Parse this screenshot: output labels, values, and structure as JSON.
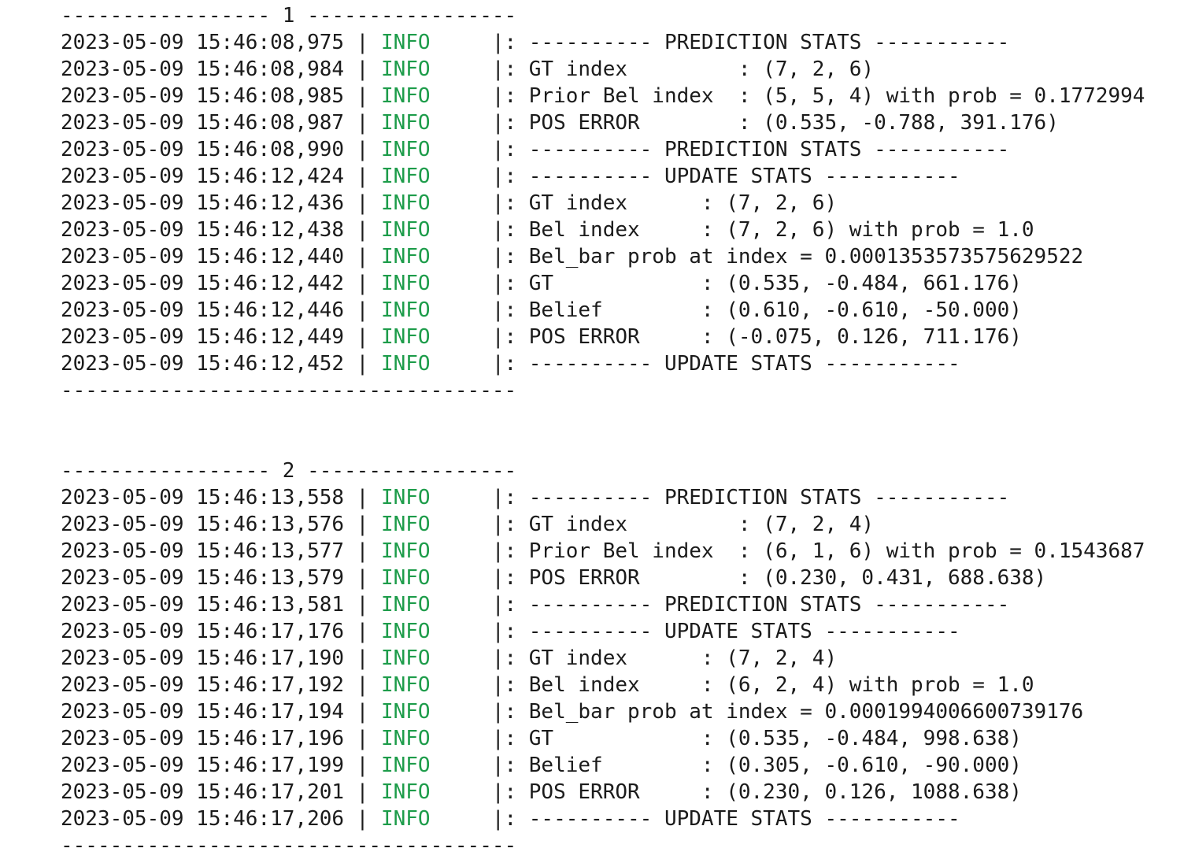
{
  "blocks": [
    {
      "header": "----------------- 1 -----------------",
      "lines": [
        {
          "timestamp": "2023-05-09 15:46:08,975 |",
          "level": "INFO",
          "message": "|: ---------- PREDICTION STATS -----------"
        },
        {
          "timestamp": "2023-05-09 15:46:08,984 |",
          "level": "INFO",
          "message": "|: GT index         : (7, 2, 6)"
        },
        {
          "timestamp": "2023-05-09 15:46:08,985 |",
          "level": "INFO",
          "message": "|: Prior Bel index  : (5, 5, 4) with prob = 0.1772994"
        },
        {
          "timestamp": "2023-05-09 15:46:08,987 |",
          "level": "INFO",
          "message": "|: POS ERROR        : (0.535, -0.788, 391.176)"
        },
        {
          "timestamp": "2023-05-09 15:46:08,990 |",
          "level": "INFO",
          "message": "|: ---------- PREDICTION STATS -----------"
        },
        {
          "timestamp": "2023-05-09 15:46:12,424 |",
          "level": "INFO",
          "message": "|: ---------- UPDATE STATS -----------"
        },
        {
          "timestamp": "2023-05-09 15:46:12,436 |",
          "level": "INFO",
          "message": "|: GT index      : (7, 2, 6)"
        },
        {
          "timestamp": "2023-05-09 15:46:12,438 |",
          "level": "INFO",
          "message": "|: Bel index     : (7, 2, 6) with prob = 1.0"
        },
        {
          "timestamp": "2023-05-09 15:46:12,440 |",
          "level": "INFO",
          "message": "|: Bel_bar prob at index = 0.0001353573575629522"
        },
        {
          "timestamp": "2023-05-09 15:46:12,442 |",
          "level": "INFO",
          "message": "|: GT            : (0.535, -0.484, 661.176)"
        },
        {
          "timestamp": "2023-05-09 15:46:12,446 |",
          "level": "INFO",
          "message": "|: Belief        : (0.610, -0.610, -50.000)"
        },
        {
          "timestamp": "2023-05-09 15:46:12,449 |",
          "level": "INFO",
          "message": "|: POS ERROR     : (-0.075, 0.126, 711.176)"
        },
        {
          "timestamp": "2023-05-09 15:46:12,452 |",
          "level": "INFO",
          "message": "|: ---------- UPDATE STATS -----------"
        }
      ],
      "footer": "-------------------------------------"
    },
    {
      "header": "----------------- 2 -----------------",
      "lines": [
        {
          "timestamp": "2023-05-09 15:46:13,558 |",
          "level": "INFO",
          "message": "|: ---------- PREDICTION STATS -----------"
        },
        {
          "timestamp": "2023-05-09 15:46:13,576 |",
          "level": "INFO",
          "message": "|: GT index         : (7, 2, 4)"
        },
        {
          "timestamp": "2023-05-09 15:46:13,577 |",
          "level": "INFO",
          "message": "|: Prior Bel index  : (6, 1, 6) with prob = 0.1543687"
        },
        {
          "timestamp": "2023-05-09 15:46:13,579 |",
          "level": "INFO",
          "message": "|: POS ERROR        : (0.230, 0.431, 688.638)"
        },
        {
          "timestamp": "2023-05-09 15:46:13,581 |",
          "level": "INFO",
          "message": "|: ---------- PREDICTION STATS -----------"
        },
        {
          "timestamp": "2023-05-09 15:46:17,176 |",
          "level": "INFO",
          "message": "|: ---------- UPDATE STATS -----------"
        },
        {
          "timestamp": "2023-05-09 15:46:17,190 |",
          "level": "INFO",
          "message": "|: GT index      : (7, 2, 4)"
        },
        {
          "timestamp": "2023-05-09 15:46:17,192 |",
          "level": "INFO",
          "message": "|: Bel index     : (6, 2, 4) with prob = 1.0"
        },
        {
          "timestamp": "2023-05-09 15:46:17,194 |",
          "level": "INFO",
          "message": "|: Bel_bar prob at index = 0.0001994006600739176"
        },
        {
          "timestamp": "2023-05-09 15:46:17,196 |",
          "level": "INFO",
          "message": "|: GT            : (0.535, -0.484, 998.638)"
        },
        {
          "timestamp": "2023-05-09 15:46:17,199 |",
          "level": "INFO",
          "message": "|: Belief        : (0.305, -0.610, -90.000)"
        },
        {
          "timestamp": "2023-05-09 15:46:17,201 |",
          "level": "INFO",
          "message": "|: POS ERROR     : (0.230, 0.126, 1088.638)"
        },
        {
          "timestamp": "2023-05-09 15:46:17,206 |",
          "level": "INFO",
          "message": "|: ---------- UPDATE STATS -----------"
        }
      ],
      "footer": "-------------------------------------"
    }
  ]
}
